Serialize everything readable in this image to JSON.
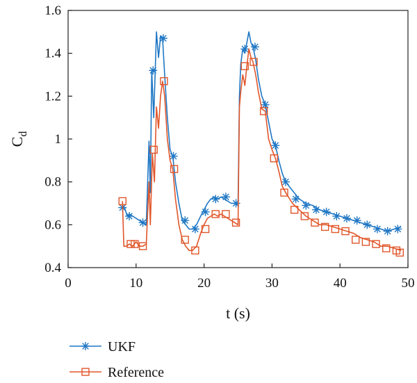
{
  "chart_data": {
    "type": "line",
    "title": "",
    "xlabel": "t (s)",
    "ylabel_main": "C",
    "ylabel_sub": "d",
    "xlim": [
      0,
      50
    ],
    "ylim": [
      0.4,
      1.6
    ],
    "xticks": [
      0,
      10,
      20,
      30,
      40,
      50
    ],
    "xtick_labels": [
      "0",
      "10",
      "20",
      "30",
      "40",
      "50"
    ],
    "yticks": [
      0.4,
      0.6,
      0.8,
      1.0,
      1.2,
      1.4,
      1.6
    ],
    "ytick_labels": [
      "0.4",
      "0.6",
      "0.8",
      "1",
      "1.2",
      "1.4",
      "1.6"
    ],
    "grid": false,
    "legend_position": "bottom-left",
    "series": [
      {
        "name": "UKF",
        "color": "#1f77c4",
        "marker": "asterisk",
        "x": [
          8.0,
          8.3,
          8.7,
          9.0,
          9.5,
          10.0,
          10.5,
          11.0,
          11.5,
          11.9,
          12.1,
          12.3,
          12.6,
          13.0,
          13.3,
          13.6,
          13.9,
          14.2,
          14.6,
          15.0,
          15.4,
          15.8,
          16.3,
          16.8,
          17.3,
          17.8,
          18.3,
          18.9,
          19.5,
          20.0,
          20.5,
          21.0,
          21.5,
          22.0,
          22.5,
          23.0,
          23.5,
          24.0,
          24.5,
          25.0,
          25.2,
          25.4,
          25.7,
          26.0,
          26.3,
          26.6,
          26.9,
          27.2,
          27.6,
          28.0,
          28.5,
          29.0,
          29.5,
          30.0,
          30.5,
          31.0,
          31.5,
          32.0,
          33.0,
          34.0,
          35.0,
          36.0,
          37.0,
          38.0,
          39.0,
          40.0,
          41.0,
          42.0,
          43.0,
          44.0,
          45.0,
          46.0,
          47.0,
          48.0,
          49.0
        ],
        "y": [
          0.69,
          0.68,
          0.64,
          0.65,
          0.64,
          0.63,
          0.62,
          0.61,
          0.6,
          0.99,
          0.75,
          1.32,
          1.1,
          1.5,
          1.38,
          1.48,
          1.47,
          1.3,
          1.1,
          0.95,
          0.92,
          0.8,
          0.7,
          0.62,
          0.6,
          0.58,
          0.58,
          0.6,
          0.64,
          0.67,
          0.7,
          0.72,
          0.73,
          0.72,
          0.73,
          0.72,
          0.71,
          0.7,
          0.7,
          0.69,
          1.2,
          1.35,
          1.42,
          1.4,
          1.45,
          1.5,
          1.45,
          1.43,
          1.37,
          1.28,
          1.2,
          1.16,
          1.08,
          1.0,
          0.97,
          0.9,
          0.84,
          0.8,
          0.76,
          0.72,
          0.7,
          0.69,
          0.67,
          0.66,
          0.65,
          0.64,
          0.63,
          0.62,
          0.61,
          0.6,
          0.59,
          0.58,
          0.57,
          0.58,
          0.59
        ],
        "marker_x": [
          8.0,
          9.0,
          11.0,
          12.5,
          14.0,
          15.5,
          17.2,
          18.7,
          20.2,
          21.7,
          23.2,
          24.7,
          26.0,
          27.5,
          29.0,
          30.5,
          32.0,
          33.5,
          35.0,
          36.5,
          38.0,
          39.5,
          41.0,
          42.5,
          44.0,
          45.5,
          47.0,
          48.5
        ],
        "marker_y": [
          0.68,
          0.64,
          0.61,
          1.32,
          1.47,
          0.92,
          0.62,
          0.58,
          0.66,
          0.72,
          0.73,
          0.7,
          1.42,
          1.43,
          1.16,
          0.97,
          0.8,
          0.72,
          0.69,
          0.67,
          0.66,
          0.64,
          0.63,
          0.62,
          0.6,
          0.58,
          0.57,
          0.58
        ]
      },
      {
        "name": "Reference",
        "color": "#e0562a",
        "marker": "square",
        "x": [
          8.0,
          8.2,
          8.6,
          9.0,
          9.5,
          10.0,
          10.5,
          11.0,
          11.5,
          11.9,
          12.1,
          12.4,
          12.7,
          13.0,
          13.3,
          13.6,
          13.9,
          14.2,
          14.6,
          15.0,
          15.4,
          15.8,
          16.3,
          16.8,
          17.3,
          17.8,
          18.3,
          18.9,
          19.5,
          20.0,
          20.5,
          21.0,
          21.5,
          22.0,
          22.5,
          23.0,
          23.5,
          24.0,
          24.5,
          25.0,
          25.2,
          25.4,
          25.7,
          26.0,
          26.3,
          26.6,
          26.9,
          27.2,
          27.6,
          28.0,
          28.5,
          29.0,
          29.5,
          30.0,
          30.5,
          31.0,
          31.5,
          32.0,
          33.0,
          34.0,
          35.0,
          36.0,
          37.0,
          38.0,
          39.0,
          40.0,
          41.0,
          42.0,
          43.0,
          44.0,
          45.0,
          46.0,
          47.0,
          48.0,
          49.0
        ],
        "y": [
          0.71,
          0.5,
          0.5,
          0.51,
          0.5,
          0.52,
          0.5,
          0.5,
          0.51,
          0.8,
          0.6,
          0.93,
          0.8,
          1.15,
          1.05,
          1.2,
          1.27,
          1.2,
          1.0,
          0.9,
          0.86,
          0.72,
          0.6,
          0.53,
          0.5,
          0.48,
          0.48,
          0.5,
          0.56,
          0.6,
          0.63,
          0.64,
          0.65,
          0.64,
          0.65,
          0.64,
          0.63,
          0.62,
          0.61,
          0.6,
          1.15,
          1.22,
          1.3,
          1.25,
          1.34,
          1.42,
          1.38,
          1.36,
          1.3,
          1.22,
          1.14,
          1.13,
          1.0,
          0.95,
          0.91,
          0.85,
          0.78,
          0.75,
          0.7,
          0.67,
          0.64,
          0.62,
          0.6,
          0.6,
          0.59,
          0.58,
          0.57,
          0.56,
          0.54,
          0.53,
          0.52,
          0.5,
          0.5,
          0.49,
          0.48
        ],
        "marker_x": [
          8.0,
          9.2,
          9.8,
          11.0,
          12.6,
          14.1,
          15.6,
          17.2,
          18.7,
          20.2,
          21.7,
          23.2,
          24.7,
          26.0,
          27.3,
          28.8,
          30.3,
          31.8,
          33.3,
          34.8,
          36.3,
          37.8,
          39.3,
          40.8,
          42.3,
          43.8,
          45.3,
          46.8,
          48.3,
          48.8
        ],
        "marker_y": [
          0.71,
          0.51,
          0.51,
          0.5,
          0.95,
          1.27,
          0.86,
          0.53,
          0.48,
          0.58,
          0.65,
          0.65,
          0.61,
          1.34,
          1.36,
          1.13,
          0.91,
          0.75,
          0.67,
          0.64,
          0.61,
          0.59,
          0.58,
          0.57,
          0.53,
          0.52,
          0.51,
          0.49,
          0.48,
          0.47
        ]
      }
    ]
  }
}
